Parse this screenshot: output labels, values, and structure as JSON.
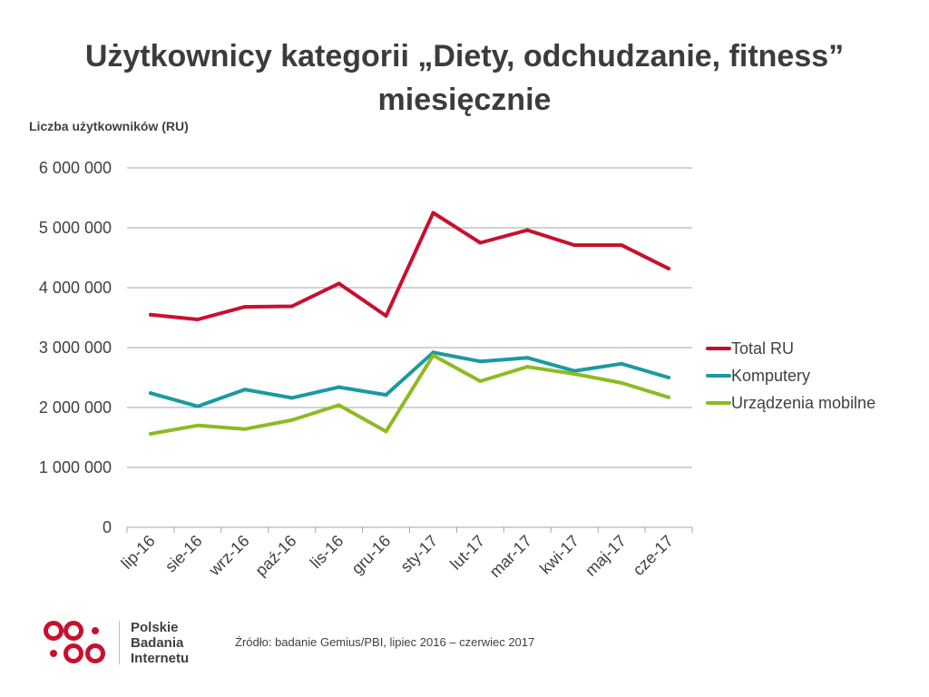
{
  "title": {
    "line1": "Użytkownicy kategorii „Diety, odchudzanie, fitness”",
    "line2": "miesięcznie"
  },
  "chart_data": {
    "type": "line",
    "title": "Użytkownicy kategorii „Diety, odchudzanie, fitness” miesięcznie",
    "ylabel": "Liczba użytkowników (RU)",
    "xlabel": "",
    "categories": [
      "lip-16",
      "sie-16",
      "wrz-16",
      "paź-16",
      "lis-16",
      "gru-16",
      "sty-17",
      "lut-17",
      "mar-17",
      "kwi-17",
      "maj-17",
      "cze-17"
    ],
    "ylim": [
      0,
      6000000
    ],
    "yticks": [
      0,
      1000000,
      2000000,
      3000000,
      4000000,
      5000000,
      6000000
    ],
    "ytick_labels": [
      "0",
      "1 000 000",
      "2 000 000",
      "3 000 000",
      "4 000 000",
      "5 000 000",
      "6 000 000"
    ],
    "grid": true,
    "legend_position": "right",
    "series": [
      {
        "name": "Total RU",
        "color": "#c8102e",
        "values": [
          3550000,
          3470000,
          3680000,
          3690000,
          4070000,
          3530000,
          5250000,
          4750000,
          4960000,
          4710000,
          4710000,
          4320000
        ]
      },
      {
        "name": "Komputery",
        "color": "#1a9aa0",
        "values": [
          2240000,
          2020000,
          2300000,
          2160000,
          2340000,
          2210000,
          2920000,
          2770000,
          2830000,
          2610000,
          2730000,
          2500000
        ]
      },
      {
        "name": "Urządzenia mobilne",
        "color": "#8dbb23",
        "values": [
          1560000,
          1700000,
          1640000,
          1790000,
          2040000,
          1600000,
          2870000,
          2440000,
          2680000,
          2560000,
          2410000,
          2170000
        ]
      }
    ]
  },
  "logo": {
    "line1": "Polskie",
    "line2": "Badania",
    "line3": "Internetu",
    "color": "#c8102e"
  },
  "source": "Źródło: badanie Gemius/PBI,  lipiec  2016 – czerwiec 2017"
}
